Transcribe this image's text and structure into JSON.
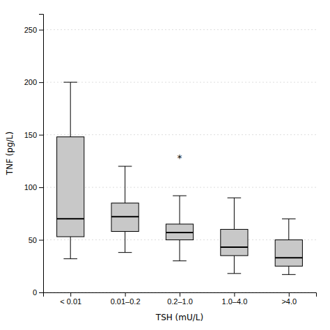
{
  "chart_data": {
    "type": "box",
    "categories": [
      "< 0.01",
      "0.01–0.2",
      "0.2–1.0",
      "1.0–4.0",
      ">4.0"
    ],
    "boxes": [
      {
        "q1": 53,
        "median": 70,
        "q3": 148,
        "whislo": 32,
        "whishi": 200
      },
      {
        "q1": 58,
        "median": 72,
        "q3": 85,
        "whislo": 38,
        "whishi": 120
      },
      {
        "q1": 50,
        "median": 57,
        "q3": 65,
        "whislo": 30,
        "whishi": 92
      },
      {
        "q1": 35,
        "median": 43,
        "q3": 60,
        "whislo": 18,
        "whishi": 90
      },
      {
        "q1": 25,
        "median": 33,
        "q3": 50,
        "whislo": 17,
        "whishi": 70
      }
    ],
    "color": "#c8c8c8",
    "xlabel": "TSH (mU/L)",
    "ylabel": "TNF (pg/L)",
    "ylim": [
      0,
      265
    ],
    "yticks": [
      0,
      50,
      100,
      150,
      200,
      250
    ],
    "grid": true,
    "annotations": [
      {
        "x": "0.2–1.0",
        "y": 127,
        "text": "*"
      }
    ]
  }
}
